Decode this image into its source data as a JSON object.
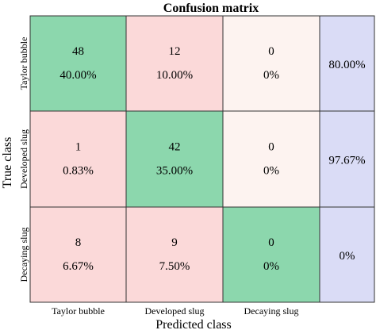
{
  "chart_data": {
    "type": "heatmap",
    "title": "Confusion matrix",
    "xlabel": "Predicted class",
    "ylabel": "True class",
    "x_categories": [
      "Taylor bubble",
      "Developed slug",
      "Decaying slug"
    ],
    "y_categories": [
      "Taylor bubble",
      "Developed slug",
      "Decaying slug"
    ],
    "counts": [
      [
        48,
        12,
        0
      ],
      [
        1,
        42,
        0
      ],
      [
        8,
        9,
        0
      ]
    ],
    "percents": [
      [
        "40.00%",
        "10.00%",
        "0%"
      ],
      [
        "0.83%",
        "35.00%",
        "0%"
      ],
      [
        "6.67%",
        "7.50%",
        "0%"
      ]
    ],
    "row_accuracy": [
      "80.00%",
      "97.67%",
      "0%"
    ],
    "colors": {
      "correct": "#8cd7ad",
      "error": "#fbd9d9",
      "zero_error": "#fdf3f0",
      "summary": "#dadcf6",
      "grid": "#333333"
    }
  }
}
